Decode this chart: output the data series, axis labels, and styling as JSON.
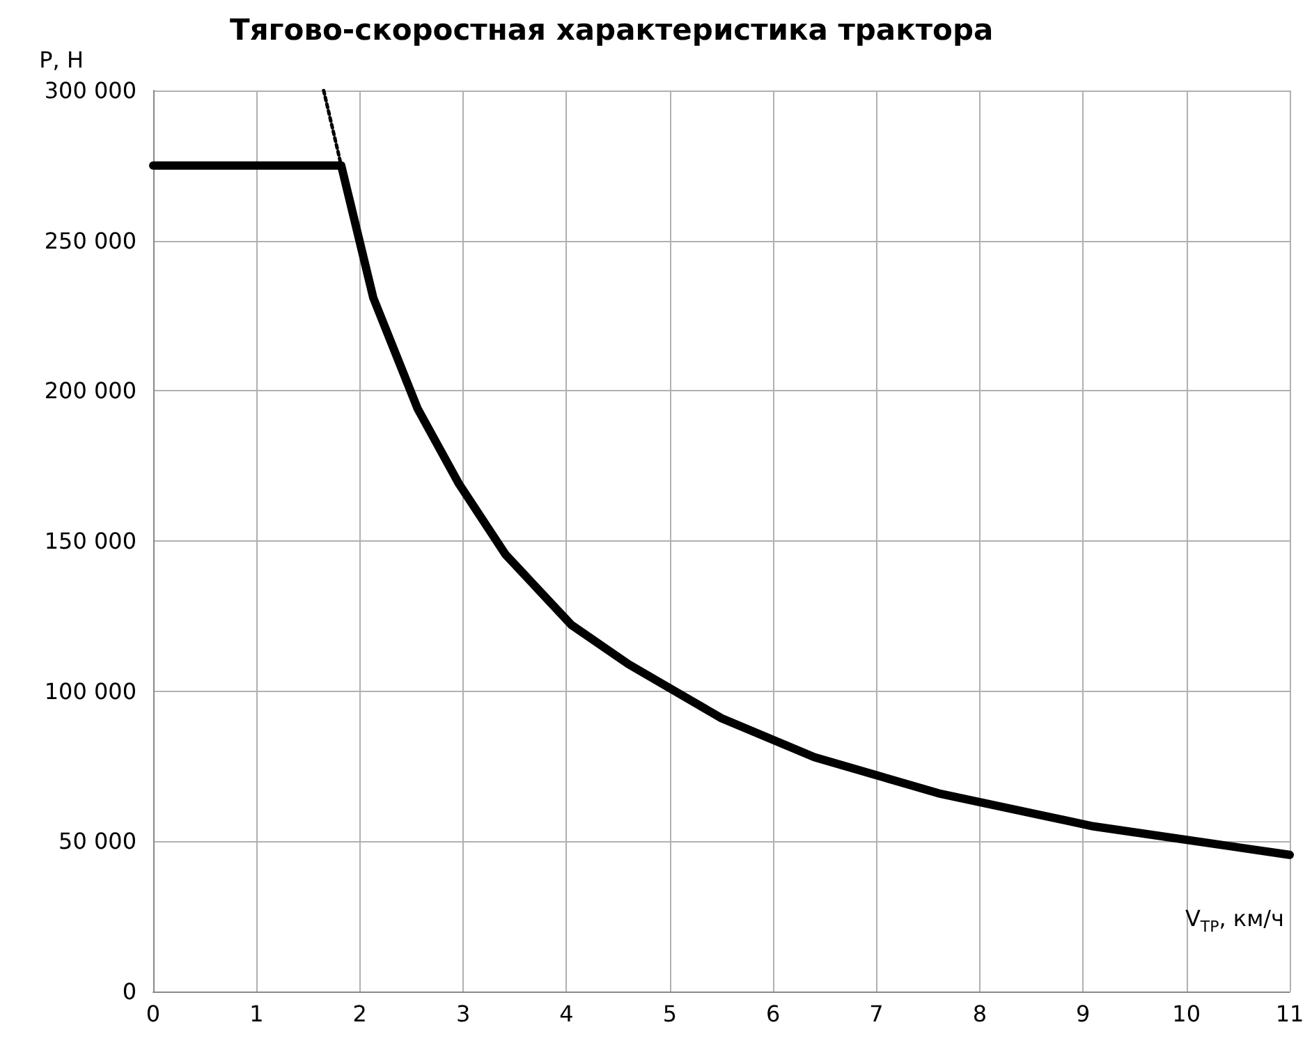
{
  "chart_data": {
    "type": "line",
    "title": "Тягово-скоростная характеристика трактора",
    "xlabel": "V$_{ТР}$, км/ч",
    "ylabel": "P, Н",
    "series": [
      {
        "color": "#000000",
        "line_style": "solid",
        "x": [
          0,
          1.82,
          2.13,
          2.56,
          2.96,
          3.41,
          4.05,
          4.6,
          5.0,
          5.5,
          6.4,
          7.6,
          9.1,
          11
        ],
        "values": [
          275000,
          275000,
          231000,
          194000,
          169000,
          145500,
          122000,
          109000,
          101000,
          91000,
          78000,
          66000,
          55000,
          45500
        ]
      },
      {
        "color": "#000000",
        "line_style": "dotted",
        "x": [
          1.65,
          1.82
        ],
        "values": [
          300000,
          275000
        ]
      }
    ],
    "xlim": [
      0,
      11
    ],
    "xticks": [
      0,
      1,
      2,
      3,
      4,
      5,
      6,
      7,
      8,
      9,
      10,
      11
    ],
    "ylim": [
      0,
      300000
    ],
    "yticks": [
      0,
      {
        "value": 50000,
        "label": "50 000"
      },
      {
        "value": 100000,
        "label": "100 000"
      },
      {
        "value": 150000,
        "label": "150 000"
      },
      {
        "value": 200000,
        "label": "200 000"
      },
      {
        "value": 250000,
        "label": "250 000"
      },
      {
        "value": 300000,
        "label": "300 000"
      }
    ],
    "grid": true,
    "marker": "none"
  }
}
